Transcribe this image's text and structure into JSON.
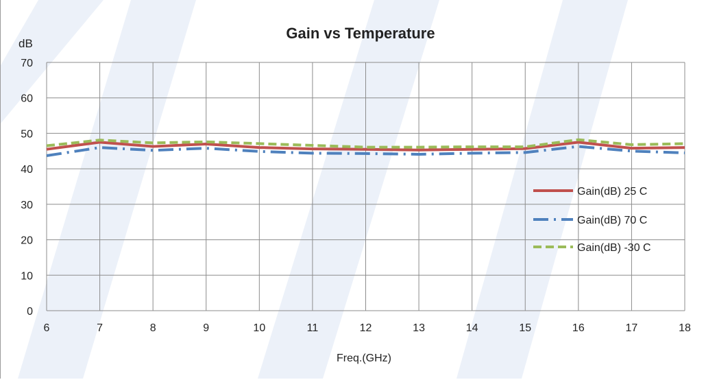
{
  "chart_data": {
    "type": "line",
    "title": "Gain vs Temperature",
    "xlabel": "Freq.(GHz)",
    "ylabel": "dB",
    "x": [
      6,
      7,
      8,
      9,
      10,
      11,
      12,
      13,
      14,
      15,
      16,
      17,
      18
    ],
    "xlim": [
      6,
      18
    ],
    "ylim": [
      0,
      70
    ],
    "yticks": [
      0,
      10,
      20,
      30,
      40,
      50,
      60,
      70
    ],
    "grid": true,
    "legend_position": "right",
    "series": [
      {
        "name": "Gain(dB) 25 C",
        "color": "#c0504d",
        "style": "solid",
        "values": [
          45.5,
          47.5,
          46.3,
          47,
          46,
          45.6,
          45.5,
          45.3,
          45.5,
          45.7,
          47.5,
          45.8,
          46
        ]
      },
      {
        "name": "Gain(dB)  70 C",
        "color": "#4f81bd",
        "style": "dash-dot",
        "values": [
          43.7,
          46,
          45.2,
          45.8,
          44.9,
          44.4,
          44.3,
          44.1,
          44.4,
          44.6,
          46.3,
          45,
          44.5
        ]
      },
      {
        "name": "Gain(dB)  -30 C",
        "color": "#9bbb59",
        "style": "dash",
        "values": [
          46.5,
          48.1,
          47.3,
          47.6,
          47.1,
          46.6,
          46.1,
          46.1,
          46.2,
          46.2,
          48.2,
          46.8,
          47.1
        ]
      }
    ]
  }
}
